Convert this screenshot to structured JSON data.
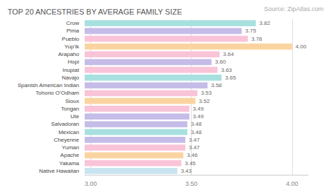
{
  "chart_data": {
    "type": "bar",
    "orientation": "horizontal",
    "title": "TOP 20 ANCESTRIES BY AVERAGE FAMILY SIZE",
    "annotations": [
      "Source: ZipAtlas.com"
    ],
    "categories": [
      "Crow",
      "Pima",
      "Pueblo",
      "Yup’ik",
      "Arapaho",
      "Hopi",
      "Inupiat",
      "Navajo",
      "Spanish American Indian",
      "Tohono O’Odham",
      "Sioux",
      "Tongan",
      "Ute",
      "Salvadoran",
      "Mexican",
      "Cheyenne",
      "Yuman",
      "Apache",
      "Yakama",
      "Native Hawaiian"
    ],
    "values": [
      3.82,
      3.75,
      3.78,
      4.0,
      3.64,
      3.6,
      3.63,
      3.65,
      3.58,
      3.53,
      3.52,
      3.49,
      3.49,
      3.48,
      3.48,
      3.47,
      3.47,
      3.46,
      3.45,
      3.43
    ],
    "value_labels": [
      "3.82",
      "3.75",
      "3.78",
      "4.00",
      "3.64",
      "3.60",
      "3.63",
      "3.65",
      "3.58",
      "3.53",
      "3.52",
      "3.49",
      "3.49",
      "3.48",
      "3.48",
      "3.47",
      "3.47",
      "3.46",
      "3.45",
      "3.43"
    ],
    "colors": [
      "#a8e0e0",
      "#c5bce8",
      "#f9c4d8",
      "#fad4a0",
      "#f9c4d8",
      "#c5bce8",
      "#f9c4d8",
      "#a8e0e0",
      "#c5bce8",
      "#f9c4d8",
      "#fad4a0",
      "#f9c4d8",
      "#c5bce8",
      "#c5bce8",
      "#a8e0e0",
      "#c5bce8",
      "#f9c4d8",
      "#fad4a0",
      "#f9c4d8",
      "#c8e4f0"
    ],
    "xlim": [
      2.97,
      4.08
    ],
    "xticks": [
      {
        "value": 3.0,
        "label": "3.00"
      },
      {
        "value": 3.5,
        "label": "3.50"
      },
      {
        "value": 4.0,
        "label": "4.00"
      }
    ],
    "grid": true,
    "data_labels": true
  }
}
